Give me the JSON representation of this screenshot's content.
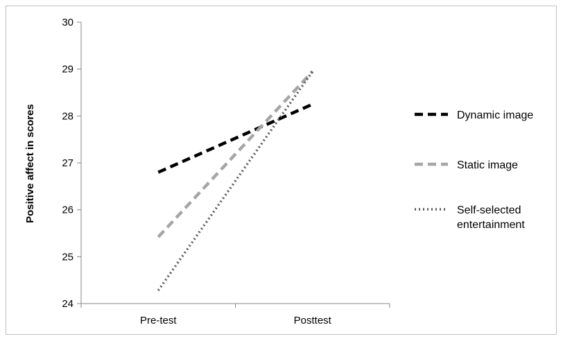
{
  "chart_data": {
    "type": "line",
    "title": "",
    "xlabel": "",
    "ylabel": "Positive affect in scores",
    "categories": [
      "Pre-test",
      "Posttest"
    ],
    "ylim": [
      24,
      30
    ],
    "yticks": [
      24,
      25,
      26,
      27,
      28,
      29,
      30
    ],
    "grid": false,
    "legend_position": "right",
    "series": [
      {
        "name": "Dynamic image",
        "values": [
          26.8,
          28.25
        ],
        "color": "#000000",
        "style": "dashed"
      },
      {
        "name": "Static image",
        "values": [
          25.42,
          28.95
        ],
        "color": "#a6a6a6",
        "style": "dashed"
      },
      {
        "name": "Self-selected entertainment",
        "name_lines": [
          "Self-selected",
          "entertainment"
        ],
        "values": [
          24.28,
          28.95
        ],
        "color": "#595959",
        "style": "dotted"
      }
    ]
  }
}
